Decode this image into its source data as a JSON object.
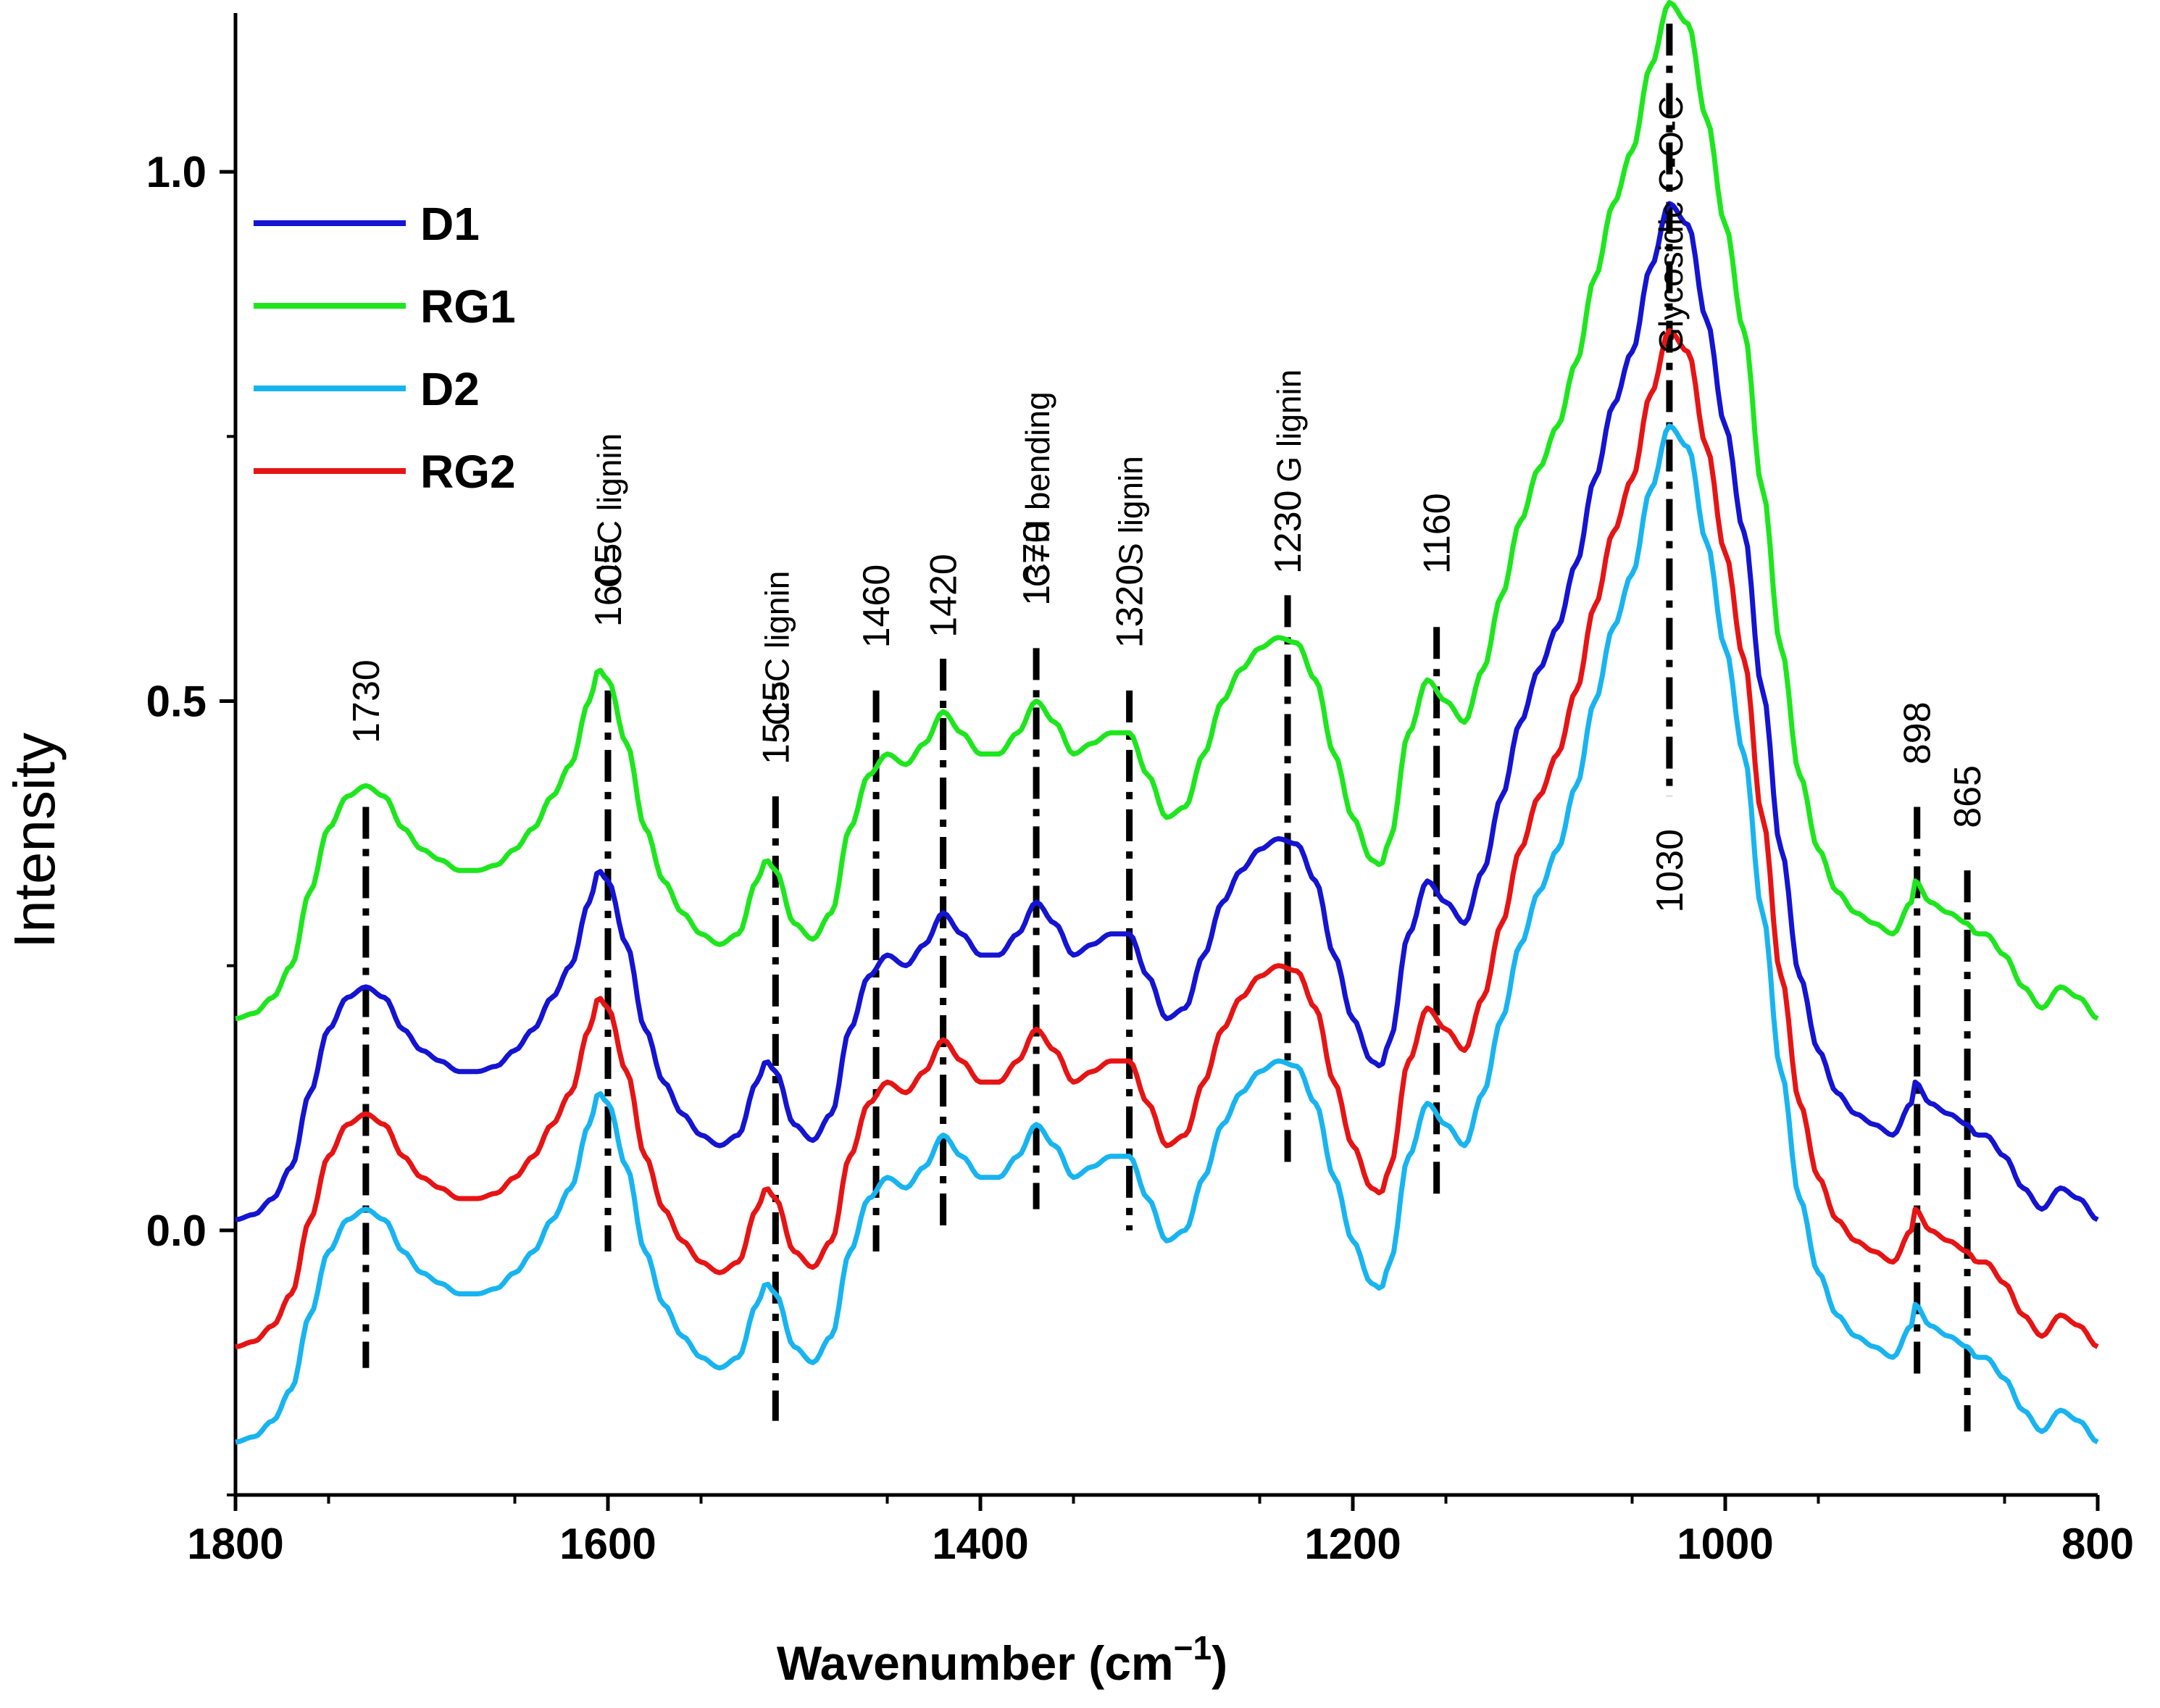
{
  "chart_data": {
    "type": "line",
    "xlabel": "Wavenumber (cm",
    "xlabel_sup": "−1",
    "xlabel_close": ")",
    "ylabel": "Intensity",
    "xlim": [
      1800,
      800
    ],
    "ylim": [
      -0.25,
      1.15
    ],
    "x_ticks": [
      1800,
      1600,
      1400,
      1200,
      1000,
      800
    ],
    "x_tick_labels": [
      "1800",
      "1600",
      "1400",
      "1200",
      "1000",
      "800"
    ],
    "y_ticks": [
      0.0,
      0.5,
      1.0
    ],
    "y_tick_labels": [
      "0.0",
      "0.5",
      "1.0"
    ],
    "legend_position": "top-left",
    "series": [
      {
        "name": "D1",
        "color": "#1414d2",
        "offset": 0.21
      },
      {
        "name": "RG1",
        "color": "#1ee61e",
        "offset": 0.4
      },
      {
        "name": "D2",
        "color": "#18b4f0",
        "offset": 0.0
      },
      {
        "name": "RG2",
        "color": "#e61414",
        "offset": 0.09
      }
    ],
    "base_spectrum": {
      "x": [
        1800,
        1790,
        1780,
        1770,
        1760,
        1750,
        1740,
        1730,
        1720,
        1710,
        1700,
        1690,
        1680,
        1670,
        1660,
        1650,
        1640,
        1630,
        1620,
        1610,
        1605,
        1600,
        1590,
        1580,
        1570,
        1560,
        1550,
        1540,
        1530,
        1520,
        1515,
        1510,
        1500,
        1490,
        1480,
        1470,
        1460,
        1450,
        1440,
        1430,
        1420,
        1410,
        1400,
        1390,
        1380,
        1370,
        1360,
        1350,
        1340,
        1330,
        1320,
        1310,
        1300,
        1290,
        1280,
        1270,
        1260,
        1250,
        1240,
        1230,
        1220,
        1210,
        1200,
        1190,
        1185,
        1180,
        1170,
        1160,
        1150,
        1140,
        1130,
        1120,
        1110,
        1100,
        1090,
        1080,
        1070,
        1060,
        1050,
        1040,
        1030,
        1020,
        1010,
        1000,
        990,
        980,
        970,
        960,
        950,
        940,
        930,
        920,
        910,
        900,
        898,
        890,
        880,
        870,
        865,
        860,
        850,
        840,
        830,
        820,
        810,
        800
      ],
      "y": [
        -0.2,
        -0.195,
        -0.18,
        -0.15,
        -0.08,
        -0.02,
        0.01,
        0.02,
        0.01,
        -0.02,
        -0.04,
        -0.05,
        -0.06,
        -0.06,
        -0.055,
        -0.04,
        -0.02,
        0.01,
        0.04,
        0.1,
        0.13,
        0.12,
        0.06,
        -0.02,
        -0.07,
        -0.1,
        -0.12,
        -0.13,
        -0.12,
        -0.07,
        -0.05,
        -0.06,
        -0.11,
        -0.125,
        -0.1,
        -0.02,
        0.03,
        0.05,
        0.04,
        0.06,
        0.09,
        0.07,
        0.05,
        0.05,
        0.07,
        0.1,
        0.08,
        0.05,
        0.06,
        0.07,
        0.07,
        0.03,
        -0.01,
        0.0,
        0.05,
        0.1,
        0.13,
        0.15,
        0.16,
        0.155,
        0.12,
        0.05,
        -0.01,
        -0.05,
        -0.055,
        -0.03,
        0.07,
        0.12,
        0.1,
        0.08,
        0.13,
        0.2,
        0.27,
        0.32,
        0.36,
        0.42,
        0.5,
        0.57,
        0.62,
        0.7,
        0.76,
        0.74,
        0.65,
        0.55,
        0.45,
        0.3,
        0.15,
        0.03,
        -0.04,
        -0.08,
        -0.1,
        -0.11,
        -0.12,
        -0.09,
        -0.07,
        -0.09,
        -0.1,
        -0.11,
        -0.12,
        -0.12,
        -0.14,
        -0.17,
        -0.19,
        -0.17,
        -0.18,
        -0.2
      ]
    },
    "peaks": [
      {
        "label": "1730",
        "x": 1730,
        "line_top": 0.4,
        "line_bottom": -0.13,
        "label_y": 0.46
      },
      {
        "label": "1605",
        "x": 1600,
        "line_top": 0.51,
        "line_bottom": -0.02,
        "label_y": 0.57,
        "assignment": "C=C lignin",
        "assignment_y": 0.68
      },
      {
        "label": "1515",
        "x": 1510,
        "line_top": 0.41,
        "line_bottom": -0.18,
        "label_y": 0.44,
        "assignment": "C=C lignin",
        "assignment_y": 0.55
      },
      {
        "label": "1460",
        "x": 1456,
        "line_top": 0.51,
        "line_bottom": -0.02,
        "label_y": 0.55
      },
      {
        "label": "1420",
        "x": 1420,
        "line_top": 0.54,
        "line_bottom": 0.0,
        "label_y": 0.56
      },
      {
        "label": "1370",
        "x": 1370,
        "line_top": 0.55,
        "line_bottom": 0.02,
        "label_y": 0.59,
        "assignment": "C=H bending",
        "assignment_y": 0.7
      },
      {
        "label": "1320",
        "x": 1320,
        "line_top": 0.51,
        "line_bottom": 0.0,
        "label_y": 0.55,
        "assignment": "S lignin",
        "assignment_y": 0.68
      },
      {
        "label": "1230",
        "x": 1235,
        "line_top": 0.6,
        "line_bottom": 0.06,
        "label_y": 0.62,
        "assignment": "G lignin",
        "assignment_y": 0.76
      },
      {
        "label": "1160",
        "x": 1155,
        "line_top": 0.57,
        "line_bottom": 0.03,
        "label_y": 0.62
      },
      {
        "label": "1030",
        "x": 1030,
        "line_top": 1.14,
        "line_bottom": 0.41,
        "label_y": 0.3,
        "assignment": "Glycosidic C-O-C",
        "assignment_y": 0.95
      },
      {
        "label": "898",
        "x": 897,
        "line_top": 0.4,
        "line_bottom": -0.14,
        "label_y": 0.44
      },
      {
        "label": "865",
        "x": 870,
        "line_top": 0.34,
        "line_bottom": -0.19,
        "label_y": 0.38
      }
    ]
  }
}
